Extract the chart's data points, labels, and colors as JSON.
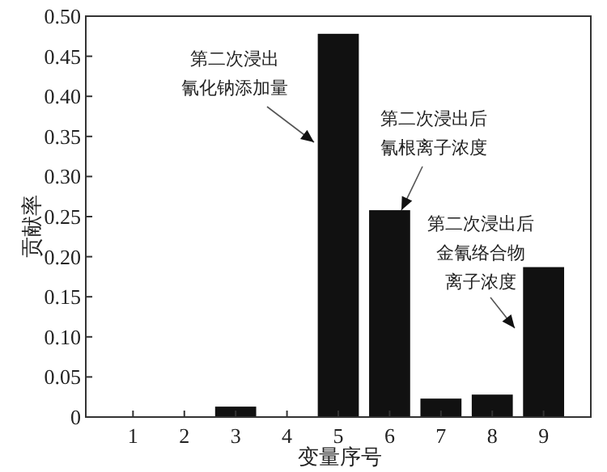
{
  "chart_data": {
    "type": "bar",
    "xlabel": "变量序号",
    "ylabel": "贡献率",
    "categories": [
      "1",
      "2",
      "3",
      "4",
      "5",
      "6",
      "7",
      "8",
      "9"
    ],
    "values": [
      0,
      0,
      0.013,
      0,
      0.478,
      0.258,
      0.023,
      0.028,
      0.187
    ],
    "color": "#111111",
    "ylim": [
      0,
      0.5
    ],
    "yticks": [
      0,
      0.05,
      {
        "value": 0.1,
        "label": "0.10"
      },
      0.15,
      {
        "value": 0.2,
        "label": "0.20"
      },
      0.25,
      {
        "value": 0.3,
        "label": "0.30"
      },
      0.35,
      {
        "value": 0.4,
        "label": "0.40"
      },
      0.45,
      {
        "value": 0.5,
        "label": "0.50"
      }
    ],
    "grid": false,
    "annotations": [
      "第二次浸出氰化钠添加量",
      "第二次浸出后氰根离子浓度",
      "第二次浸出后金氰络合物离子浓度"
    ]
  }
}
